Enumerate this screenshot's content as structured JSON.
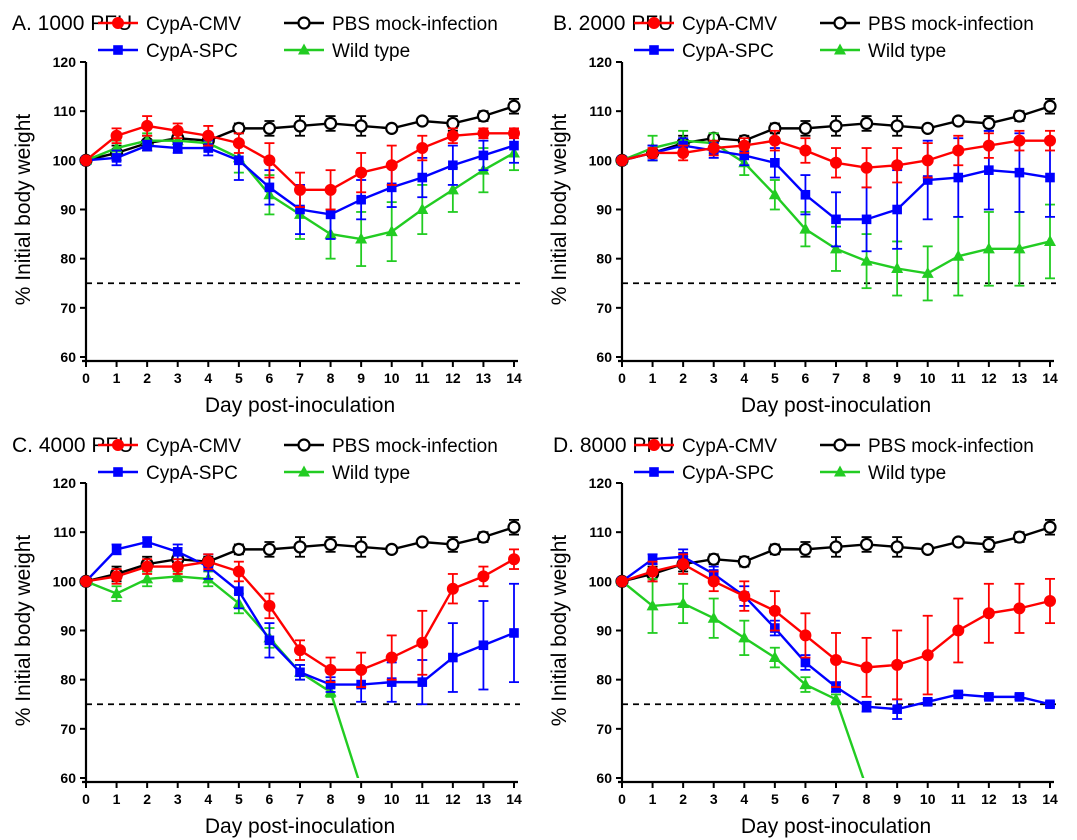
{
  "chart_data": [
    {
      "type": "line",
      "title": "A. 1000 PFU",
      "xlabel": "Day post-inoculation",
      "ylabel": "% Initial body weight",
      "xlim": [
        0,
        14
      ],
      "ylim": [
        60,
        120
      ],
      "x_ticks": [
        0,
        1,
        2,
        3,
        4,
        5,
        6,
        7,
        8,
        9,
        10,
        11,
        12,
        13,
        14
      ],
      "y_ticks": [
        60,
        70,
        80,
        90,
        100,
        110,
        120
      ],
      "reference_line": 75,
      "legend_position": "top",
      "series": [
        {
          "name": "CypA-CMV",
          "color": "#ff0000",
          "marker": "circle",
          "x": [
            0,
            1,
            2,
            3,
            4,
            5,
            6,
            7,
            8,
            9,
            10,
            11,
            12,
            13,
            14
          ],
          "values": [
            100,
            105,
            107,
            106,
            105,
            103.5,
            100,
            94,
            94,
            97.5,
            99,
            102.5,
            105,
            105.5,
            105.5
          ],
          "errors": [
            0.5,
            1.5,
            2,
            1.5,
            2,
            2,
            3.5,
            3.5,
            4,
            4,
            4,
            2.5,
            1.5,
            1,
            1
          ]
        },
        {
          "name": "CypA-SPC",
          "color": "#0000ff",
          "marker": "square",
          "x": [
            0,
            1,
            2,
            3,
            4,
            5,
            6,
            7,
            8,
            9,
            10,
            11,
            12,
            13,
            14
          ],
          "values": [
            100,
            100.5,
            103,
            102.5,
            102.5,
            100,
            94.5,
            90,
            89,
            92,
            94.5,
            96.5,
            99,
            101,
            103
          ],
          "errors": [
            0.5,
            1.5,
            1,
            1,
            1.5,
            4,
            3.5,
            5,
            5,
            4,
            4,
            4,
            4,
            3,
            3.5
          ]
        },
        {
          "name": "PBS mock-infection",
          "color": "#000000",
          "marker": "open-circle",
          "x": [
            0,
            1,
            2,
            3,
            4,
            5,
            6,
            7,
            8,
            9,
            10,
            11,
            12,
            13,
            14
          ],
          "values": [
            100,
            101.5,
            103.5,
            104.5,
            104,
            106.5,
            106.5,
            107,
            107.5,
            107,
            106.5,
            108,
            107.5,
            109,
            111
          ],
          "errors": [
            0.5,
            1.5,
            1.5,
            1,
            1,
            1,
            1.5,
            2,
            1.5,
            2,
            0.5,
            0.5,
            1.5,
            1,
            1.5
          ]
        },
        {
          "name": "Wild type",
          "color": "#22cc22",
          "marker": "triangle",
          "x": [
            0,
            1,
            2,
            3,
            4,
            5,
            6,
            7,
            8,
            9,
            10,
            11,
            12,
            13,
            14
          ],
          "values": [
            100,
            102.5,
            104,
            104,
            103.5,
            100.5,
            93,
            89,
            85,
            84,
            85.5,
            90,
            94,
            98,
            101.5
          ],
          "errors": [
            0.5,
            1.5,
            1.5,
            1.5,
            1.5,
            3,
            4,
            5,
            5,
            5.5,
            6,
            5,
            4.5,
            4.5,
            3.5
          ]
        }
      ]
    },
    {
      "type": "line",
      "title": "B. 2000 PFU",
      "xlabel": "Day post-inoculation",
      "ylabel": "% Initial body weight",
      "xlim": [
        0,
        14
      ],
      "ylim": [
        60,
        120
      ],
      "x_ticks": [
        0,
        1,
        2,
        3,
        4,
        5,
        6,
        7,
        8,
        9,
        10,
        11,
        12,
        13,
        14
      ],
      "y_ticks": [
        60,
        70,
        80,
        90,
        100,
        110,
        120
      ],
      "reference_line": 75,
      "legend_position": "top",
      "series": [
        {
          "name": "CypA-CMV",
          "color": "#ff0000",
          "marker": "circle",
          "x": [
            0,
            1,
            2,
            3,
            4,
            5,
            6,
            7,
            8,
            9,
            10,
            11,
            12,
            13,
            14
          ],
          "values": [
            100,
            101.5,
            101.5,
            102.5,
            103,
            104,
            102,
            99.5,
            98.5,
            99,
            100,
            102,
            103,
            104,
            104
          ],
          "errors": [
            0.5,
            1,
            1.5,
            1.5,
            1.5,
            2,
            2.5,
            3,
            4,
            3.5,
            3.5,
            3,
            2.5,
            2,
            2
          ]
        },
        {
          "name": "CypA-SPC",
          "color": "#0000ff",
          "marker": "square",
          "x": [
            0,
            1,
            2,
            3,
            4,
            5,
            6,
            7,
            8,
            9,
            10,
            11,
            12,
            13,
            14
          ],
          "values": [
            100,
            101.5,
            103,
            102,
            101,
            99.5,
            93,
            88,
            88,
            90,
            96,
            96.5,
            98,
            97.5,
            96.5
          ],
          "errors": [
            0.5,
            1.5,
            1.5,
            1.5,
            2,
            3,
            4,
            5.5,
            6.5,
            8,
            8,
            8,
            8,
            8,
            8
          ]
        },
        {
          "name": "PBS mock-infection",
          "color": "#000000",
          "marker": "open-circle",
          "x": [
            0,
            1,
            2,
            3,
            4,
            5,
            6,
            7,
            8,
            9,
            10,
            11,
            12,
            13,
            14
          ],
          "values": [
            100,
            101.5,
            103.5,
            104.5,
            104,
            106.5,
            106.5,
            107,
            107.5,
            107,
            106.5,
            108,
            107.5,
            109,
            111
          ],
          "errors": [
            0.5,
            1.5,
            1.5,
            1,
            1,
            1,
            1.5,
            2,
            1.5,
            2,
            0.5,
            0.5,
            1.5,
            1,
            1.5
          ]
        },
        {
          "name": "Wild type",
          "color": "#22cc22",
          "marker": "triangle",
          "x": [
            0,
            1,
            2,
            3,
            4,
            5,
            6,
            7,
            8,
            9,
            10,
            11,
            12,
            13,
            14
          ],
          "values": [
            100,
            102.5,
            104,
            103.5,
            99.5,
            93,
            86,
            82,
            79.5,
            78,
            77,
            80.5,
            82,
            82,
            83.5
          ],
          "errors": [
            0.5,
            2.5,
            2,
            2,
            2.5,
            3,
            3.5,
            4.5,
            5.5,
            5.5,
            5.5,
            8,
            7.5,
            7.5,
            7.5
          ]
        }
      ]
    },
    {
      "type": "line",
      "title": "C. 4000 PFU",
      "xlabel": "Day post-inoculation",
      "ylabel": "% Initial body weight",
      "xlim": [
        0,
        14
      ],
      "ylim": [
        60,
        120
      ],
      "x_ticks": [
        0,
        1,
        2,
        3,
        4,
        5,
        6,
        7,
        8,
        9,
        10,
        11,
        12,
        13,
        14
      ],
      "y_ticks": [
        60,
        70,
        80,
        90,
        100,
        110,
        120
      ],
      "reference_line": 75,
      "legend_position": "top",
      "series": [
        {
          "name": "CypA-CMV",
          "color": "#ff0000",
          "marker": "circle",
          "x": [
            0,
            1,
            2,
            3,
            4,
            5,
            6,
            7,
            8,
            9,
            10,
            11,
            12,
            13,
            14
          ],
          "values": [
            100,
            101,
            103,
            103,
            104,
            102,
            95,
            86,
            82,
            82,
            84.5,
            87.5,
            98.5,
            101,
            104.5
          ],
          "errors": [
            0.5,
            1.5,
            1.5,
            1.5,
            1.5,
            2,
            2.5,
            2,
            2.5,
            3.5,
            4.5,
            6.5,
            3,
            2,
            2
          ]
        },
        {
          "name": "CypA-SPC",
          "color": "#0000ff",
          "marker": "square",
          "x": [
            0,
            1,
            2,
            3,
            4,
            5,
            6,
            7,
            8,
            9,
            10,
            11,
            12,
            13,
            14
          ],
          "values": [
            100,
            106.5,
            108,
            106,
            103,
            98,
            88,
            81.5,
            79,
            79,
            79.5,
            79.5,
            84.5,
            87,
            89.5
          ],
          "errors": [
            0.5,
            1,
            1,
            1.5,
            2.5,
            3.5,
            3.5,
            1.5,
            1.5,
            3.5,
            4,
            4.5,
            7,
            9,
            10
          ]
        },
        {
          "name": "PBS mock-infection",
          "color": "#000000",
          "marker": "open-circle",
          "x": [
            0,
            1,
            2,
            3,
            4,
            5,
            6,
            7,
            8,
            9,
            10,
            11,
            12,
            13,
            14
          ],
          "values": [
            100,
            101.5,
            103.5,
            104.5,
            104,
            106.5,
            106.5,
            107,
            107.5,
            107,
            106.5,
            108,
            107.5,
            109,
            111
          ],
          "errors": [
            0.5,
            1.5,
            1.5,
            1,
            1,
            1,
            1.5,
            2,
            1.5,
            2,
            0.5,
            0.5,
            1.5,
            1,
            1.5
          ]
        },
        {
          "name": "Wild type",
          "color": "#22cc22",
          "marker": "triangle",
          "x": [
            0,
            1,
            2,
            3,
            4,
            5,
            6,
            7,
            8,
            9
          ],
          "values": [
            100,
            97.5,
            100.5,
            101,
            100.5,
            95.5,
            88.5,
            81.5,
            77.5,
            58
          ],
          "errors": [
            0.5,
            1.5,
            1.5,
            1,
            1.5,
            2,
            2,
            1.5,
            1,
            0
          ],
          "drops_off_axis": true
        }
      ]
    },
    {
      "type": "line",
      "title": "D. 8000 PFU",
      "xlabel": "Day post-inoculation",
      "ylabel": "% Initial body weight",
      "xlim": [
        0,
        14
      ],
      "ylim": [
        60,
        120
      ],
      "x_ticks": [
        0,
        1,
        2,
        3,
        4,
        5,
        6,
        7,
        8,
        9,
        10,
        11,
        12,
        13,
        14
      ],
      "y_ticks": [
        60,
        70,
        80,
        90,
        100,
        110,
        120
      ],
      "reference_line": 75,
      "legend_position": "top",
      "series": [
        {
          "name": "CypA-CMV",
          "color": "#ff0000",
          "marker": "circle",
          "x": [
            0,
            1,
            2,
            3,
            4,
            5,
            6,
            7,
            8,
            9,
            10,
            11,
            12,
            13,
            14
          ],
          "values": [
            100,
            102,
            103.5,
            100,
            97,
            94,
            89,
            84,
            82.5,
            83,
            85,
            90,
            93.5,
            94.5,
            96
          ],
          "errors": [
            0.5,
            2,
            2,
            2,
            3,
            4,
            4.5,
            5.5,
            6,
            7,
            8,
            6.5,
            6,
            5,
            4.5
          ]
        },
        {
          "name": "CypA-SPC",
          "color": "#0000ff",
          "marker": "square",
          "x": [
            0,
            1,
            2,
            3,
            4,
            5,
            6,
            7,
            8,
            9,
            10,
            11,
            12,
            13,
            14
          ],
          "values": [
            100,
            104.5,
            105,
            101.5,
            97,
            90.5,
            83.5,
            78.5,
            74.5,
            74,
            75.5,
            77,
            76.5,
            76.5,
            75
          ],
          "errors": [
            0.5,
            1,
            1.5,
            1.5,
            2,
            1.5,
            1.5,
            1,
            1,
            2,
            0.5,
            0.5,
            0.5,
            0.5,
            0.5
          ]
        },
        {
          "name": "PBS mock-infection",
          "color": "#000000",
          "marker": "open-circle",
          "x": [
            0,
            1,
            2,
            3,
            4,
            5,
            6,
            7,
            8,
            9,
            10,
            11,
            12,
            13,
            14
          ],
          "values": [
            100,
            101.5,
            103.5,
            104.5,
            104,
            106.5,
            106.5,
            107,
            107.5,
            107,
            106.5,
            108,
            107.5,
            109,
            111
          ],
          "errors": [
            0.5,
            1.5,
            1.5,
            1,
            1,
            1,
            1.5,
            2,
            1.5,
            2,
            0.5,
            0.5,
            1.5,
            1,
            1.5
          ]
        },
        {
          "name": "Wild type",
          "color": "#22cc22",
          "marker": "triangle",
          "x": [
            0,
            1,
            2,
            3,
            4,
            5,
            6,
            7,
            8
          ],
          "values": [
            100,
            95,
            95.5,
            92.5,
            88.5,
            84.5,
            79,
            76,
            58
          ],
          "errors": [
            0.5,
            5.5,
            4,
            4,
            3.5,
            2,
            1.5,
            1,
            0
          ],
          "drops_off_axis": true
        }
      ]
    }
  ]
}
